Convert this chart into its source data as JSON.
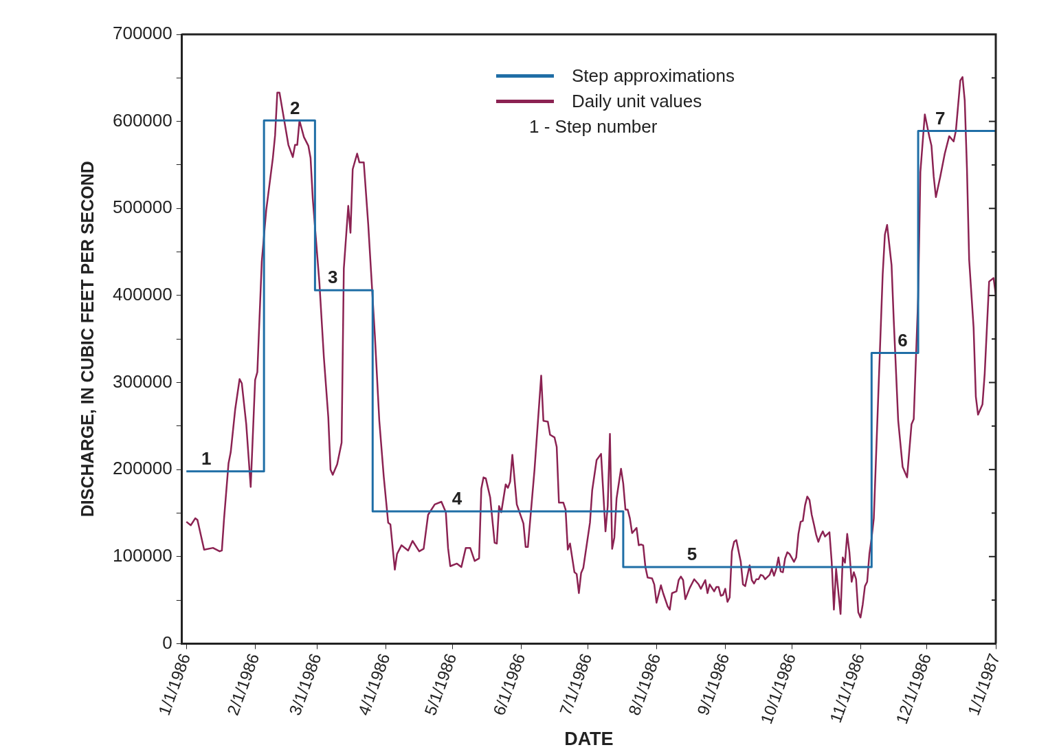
{
  "chart_data": {
    "type": "line",
    "xlabel": "DATE",
    "ylabel": "DISCHARGE, IN CUBIC FEET PER SECOND",
    "xlim": [
      "1985-12-30",
      "1987-01-01"
    ],
    "xticks": [
      {
        "value": "1986-01-01",
        "label": "1/1/1986"
      },
      {
        "value": "1986-02-01",
        "label": "2/1/1986"
      },
      {
        "value": "1986-03-01",
        "label": "3/1/1986"
      },
      {
        "value": "1986-04-01",
        "label": "4/1/1986"
      },
      {
        "value": "1986-05-01",
        "label": "5/1/1986"
      },
      {
        "value": "1986-06-01",
        "label": "6/1/1986"
      },
      {
        "value": "1986-07-01",
        "label": "7/1/1986"
      },
      {
        "value": "1986-08-01",
        "label": "8/1/1986"
      },
      {
        "value": "1986-09-01",
        "label": "9/1/1986"
      },
      {
        "value": "1986-10-01",
        "label": "10/1/1986"
      },
      {
        "value": "1986-11-01",
        "label": "11/1/1986"
      },
      {
        "value": "1986-12-01",
        "label": "12/1/1986"
      },
      {
        "value": "1987-01-01",
        "label": "1/1/1987"
      }
    ],
    "ylim": [
      0,
      700000
    ],
    "yticks": [
      0,
      {
        "value": 50000,
        "label": null
      },
      100000,
      {
        "value": 150000,
        "label": null
      },
      200000,
      {
        "value": 250000,
        "label": null
      },
      300000,
      {
        "value": 350000,
        "label": null
      },
      400000,
      {
        "value": 450000,
        "label": null
      },
      500000,
      {
        "value": 550000,
        "label": null
      },
      600000,
      {
        "value": 650000,
        "label": null
      },
      700000
    ],
    "grid": false,
    "legend": "top right",
    "marker": "none",
    "line_style": "solid",
    "series": [
      {
        "name": "Step approximations",
        "type": "step",
        "color": "#1f6ea6",
        "x": [
          "1986-01-01",
          "1986-02-05",
          "1986-02-28",
          "1986-03-26",
          "1986-07-17",
          "1986-11-06",
          "1986-11-27",
          "1987-01-01"
        ],
        "values": [
          198000,
          601000,
          406000,
          152000,
          88000,
          334000,
          589000,
          589000
        ]
      },
      {
        "name": "Daily unit values",
        "type": "line",
        "color": "#8b2252",
        "x": [
          "1986-01-01",
          "1986-01-03",
          "1986-01-05",
          "1986-01-06",
          "1986-01-09",
          "1986-01-13",
          "1986-01-16",
          "1986-01-17",
          "1986-01-18",
          "1986-01-20",
          "1986-01-21",
          "1986-01-23",
          "1986-01-25",
          "1986-01-26",
          "1986-01-28",
          "1986-01-30",
          "1986-02-01",
          "1986-02-02",
          "1986-02-04",
          "1986-02-06",
          "1986-02-09",
          "1986-02-10",
          "1986-02-11",
          "1986-02-12",
          "1986-02-16",
          "1986-02-18",
          "1986-02-19",
          "1986-02-20",
          "1986-02-21",
          "1986-02-23",
          "1986-02-25",
          "1986-02-26",
          "1986-02-27",
          "1986-03-02",
          "1986-03-04",
          "1986-03-06",
          "1986-03-07",
          "1986-03-08",
          "1986-03-10",
          "1986-03-12",
          "1986-03-13",
          "1986-03-15",
          "1986-03-16",
          "1986-03-17",
          "1986-03-19",
          "1986-03-20",
          "1986-03-22",
          "1986-03-24",
          "1986-03-27",
          "1986-03-29",
          "1986-03-31",
          "1986-04-02",
          "1986-04-03",
          "1986-04-05",
          "1986-04-06",
          "1986-04-08",
          "1986-04-11",
          "1986-04-13",
          "1986-04-16",
          "1986-04-18",
          "1986-04-20",
          "1986-04-23",
          "1986-04-26",
          "1986-04-28",
          "1986-04-29",
          "1986-04-30",
          "1986-05-03",
          "1986-05-05",
          "1986-05-07",
          "1986-05-09",
          "1986-05-11",
          "1986-05-13",
          "1986-05-14",
          "1986-05-15",
          "1986-05-16",
          "1986-05-18",
          "1986-05-20",
          "1986-05-21",
          "1986-05-22",
          "1986-05-23",
          "1986-05-25",
          "1986-05-26",
          "1986-05-27",
          "1986-05-28",
          "1986-05-30",
          "1986-06-02",
          "1986-06-03",
          "1986-06-04",
          "1986-06-07",
          "1986-06-10",
          "1986-06-11",
          "1986-06-13",
          "1986-06-14",
          "1986-06-16",
          "1986-06-17",
          "1986-06-18",
          "1986-06-20",
          "1986-06-21",
          "1986-06-22",
          "1986-06-23",
          "1986-06-25",
          "1986-06-26",
          "1986-06-27",
          "1986-06-28",
          "1986-06-29",
          "1986-07-02",
          "1986-07-03",
          "1986-07-05",
          "1986-07-07",
          "1986-07-09",
          "1986-07-10",
          "1986-07-11",
          "1986-07-12",
          "1986-07-13",
          "1986-07-14",
          "1986-07-16",
          "1986-07-17",
          "1986-07-18",
          "1986-07-19",
          "1986-07-20",
          "1986-07-21",
          "1986-07-23",
          "1986-07-24",
          "1986-07-25",
          "1986-07-26",
          "1986-07-27",
          "1986-07-28",
          "1986-07-30",
          "1986-07-31",
          "1986-08-01",
          "1986-08-03",
          "1986-08-04",
          "1986-08-06",
          "1986-08-07",
          "1986-08-08",
          "1986-08-10",
          "1986-08-11",
          "1986-08-12",
          "1986-08-13",
          "1986-08-14",
          "1986-08-16",
          "1986-08-18",
          "1986-08-20",
          "1986-08-21",
          "1986-08-23",
          "1986-08-24",
          "1986-08-25",
          "1986-08-27",
          "1986-08-28",
          "1986-08-29",
          "1986-08-30",
          "1986-08-31",
          "1986-09-01",
          "1986-09-02",
          "1986-09-03",
          "1986-09-04",
          "1986-09-05",
          "1986-09-06",
          "1986-09-08",
          "1986-09-09",
          "1986-09-10",
          "1986-09-12",
          "1986-09-13",
          "1986-09-14",
          "1986-09-15",
          "1986-09-16",
          "1986-09-17",
          "1986-09-18",
          "1986-09-19",
          "1986-09-21",
          "1986-09-22",
          "1986-09-23",
          "1986-09-24",
          "1986-09-25",
          "1986-09-26",
          "1986-09-27",
          "1986-09-28",
          "1986-09-29",
          "1986-09-30",
          "1986-10-02",
          "1986-10-03",
          "1986-10-04",
          "1986-10-05",
          "1986-10-06",
          "1986-10-07",
          "1986-10-08",
          "1986-10-09",
          "1986-10-10",
          "1986-10-11",
          "1986-10-12",
          "1986-10-13",
          "1986-10-14",
          "1986-10-15",
          "1986-10-16",
          "1986-10-18",
          "1986-10-19",
          "1986-10-20",
          "1986-10-21",
          "1986-10-23",
          "1986-10-24",
          "1986-10-25",
          "1986-10-26",
          "1986-10-27",
          "1986-10-28",
          "1986-10-29",
          "1986-10-30",
          "1986-10-31",
          "1986-11-01",
          "1986-11-02",
          "1986-11-03",
          "1986-11-04",
          "1986-11-05",
          "1986-11-06",
          "1986-11-07",
          "1986-11-09",
          "1986-11-10",
          "1986-11-11",
          "1986-11-12",
          "1986-11-13",
          "1986-11-15",
          "1986-11-16",
          "1986-11-18",
          "1986-11-20",
          "1986-11-22",
          "1986-11-24",
          "1986-11-25",
          "1986-11-27",
          "1986-11-28",
          "1986-11-30",
          "1986-12-02",
          "1986-12-03",
          "1986-12-04",
          "1986-12-05",
          "1986-12-07",
          "1986-12-09",
          "1986-12-11",
          "1986-12-13",
          "1986-12-14",
          "1986-12-16",
          "1986-12-17",
          "1986-12-18",
          "1986-12-19",
          "1986-12-20",
          "1986-12-22",
          "1986-12-23",
          "1986-12-24",
          "1986-12-26",
          "1986-12-27",
          "1986-12-28",
          "1986-12-29",
          "1986-12-31",
          "1987-01-01"
        ],
        "values": [
          140000,
          136000,
          144000,
          142000,
          108000,
          110000,
          106000,
          107000,
          144000,
          207000,
          220000,
          269000,
          304000,
          299000,
          252000,
          180000,
          303000,
          312000,
          439000,
          498000,
          558000,
          584000,
          633000,
          633000,
          573000,
          559000,
          573000,
          573000,
          601000,
          582000,
          572000,
          558000,
          511000,
          414000,
          329000,
          260000,
          200000,
          194000,
          206000,
          231000,
          431000,
          503000,
          472000,
          545000,
          563000,
          553000,
          553000,
          482000,
          354000,
          256000,
          192000,
          139000,
          137000,
          85000,
          103000,
          113000,
          107000,
          118000,
          106000,
          109000,
          148000,
          160000,
          163000,
          151000,
          110000,
          89000,
          92000,
          88000,
          110000,
          110000,
          95000,
          98000,
          178000,
          191000,
          190000,
          168000,
          116000,
          115000,
          158000,
          151000,
          183000,
          179000,
          186000,
          217000,
          160000,
          138000,
          111000,
          111000,
          200000,
          308000,
          256000,
          255000,
          240000,
          237000,
          226000,
          162000,
          162000,
          154000,
          108000,
          115000,
          82000,
          80000,
          58000,
          81000,
          87000,
          139000,
          176000,
          211000,
          218000,
          129000,
          158000,
          241000,
          109000,
          122000,
          167000,
          201000,
          184000,
          154000,
          154000,
          144000,
          127000,
          133000,
          113000,
          114000,
          113000,
          88000,
          76000,
          75000,
          68000,
          47000,
          67000,
          58000,
          43000,
          39000,
          58000,
          60000,
          73000,
          77000,
          73000,
          51000,
          64000,
          74000,
          68000,
          63000,
          73000,
          58000,
          68000,
          60000,
          65000,
          65000,
          55000,
          56000,
          63000,
          48000,
          53000,
          106000,
          117000,
          119000,
          94000,
          68000,
          66000,
          90000,
          73000,
          69000,
          74000,
          74000,
          79000,
          78000,
          74000,
          79000,
          86000,
          78000,
          86000,
          99000,
          83000,
          82000,
          98000,
          105000,
          103000,
          94000,
          99000,
          126000,
          140000,
          141000,
          159000,
          169000,
          165000,
          148000,
          137000,
          125000,
          117000,
          124000,
          129000,
          123000,
          128000,
          94000,
          39000,
          86000,
          34000,
          99000,
          93000,
          126000,
          105000,
          71000,
          82000,
          74000,
          36000,
          30000,
          45000,
          66000,
          71000,
          103000,
          121000,
          144000,
          284000,
          354000,
          424000,
          470000,
          481000,
          435000,
          371000,
          256000,
          203000,
          191000,
          252000,
          258000,
          398000,
          542000,
          608000,
          583000,
          572000,
          537000,
          513000,
          537000,
          563000,
          583000,
          577000,
          589000,
          647000,
          651000,
          624000,
          546000,
          441000,
          363000,
          284000,
          263000,
          275000,
          310000,
          363000,
          416000,
          420000,
          401000
        ]
      }
    ],
    "annotations": [
      {
        "text": "1",
        "x": "1986-01-10",
        "y": 198000
      },
      {
        "text": "2",
        "x": "1986-02-19",
        "y": 601000
      },
      {
        "text": "3",
        "x": "1986-03-08",
        "y": 406000
      },
      {
        "text": "4",
        "x": "1986-05-03",
        "y": 152000
      },
      {
        "text": "5",
        "x": "1986-08-17",
        "y": 88000
      },
      {
        "text": "6",
        "x": "1986-11-20",
        "y": 334000
      },
      {
        "text": "7",
        "x": "1986-12-07",
        "y": 589000
      },
      "1 -  Step number"
    ]
  }
}
